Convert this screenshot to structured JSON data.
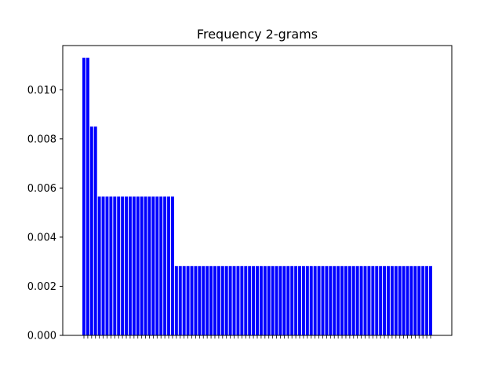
{
  "chart_data": {
    "type": "bar",
    "title": "Frequency 2-grams",
    "xlabel": "",
    "ylabel": "",
    "ylim": [
      0,
      0.0118
    ],
    "yticks": [
      0.0,
      0.002,
      0.004,
      0.006,
      0.008,
      0.01
    ],
    "ytick_labels": [
      "0.000",
      "0.002",
      "0.004",
      "0.006",
      "0.008",
      "0.010"
    ],
    "bar_color": "#0000ff",
    "grid": false,
    "legend": "none",
    "categories_legible": false,
    "values": [
      0.0113,
      0.0113,
      0.0085,
      0.0085,
      0.00565,
      0.00565,
      0.00565,
      0.00565,
      0.00565,
      0.00565,
      0.00565,
      0.00565,
      0.00565,
      0.00565,
      0.00565,
      0.00565,
      0.00565,
      0.00565,
      0.00565,
      0.00565,
      0.00565,
      0.00565,
      0.00565,
      0.00565,
      0.00282,
      0.00282,
      0.00282,
      0.00282,
      0.00282,
      0.00282,
      0.00282,
      0.00282,
      0.00282,
      0.00282,
      0.00282,
      0.00282,
      0.00282,
      0.00282,
      0.00282,
      0.00282,
      0.00282,
      0.00282,
      0.00282,
      0.00282,
      0.00282,
      0.00282,
      0.00282,
      0.00282,
      0.00282,
      0.00282,
      0.00282,
      0.00282,
      0.00282,
      0.00282,
      0.00282,
      0.00282,
      0.00282,
      0.00282,
      0.00282,
      0.00282,
      0.00282,
      0.00282,
      0.00282,
      0.00282,
      0.00282,
      0.00282,
      0.00282,
      0.00282,
      0.00282,
      0.00282,
      0.00282,
      0.00282,
      0.00282,
      0.00282,
      0.00282,
      0.00282,
      0.00282,
      0.00282,
      0.00282,
      0.00282,
      0.00282,
      0.00282,
      0.00282,
      0.00282,
      0.00282,
      0.00282,
      0.00282,
      0.00282,
      0.00282,
      0.00282,
      0.00282
    ]
  }
}
